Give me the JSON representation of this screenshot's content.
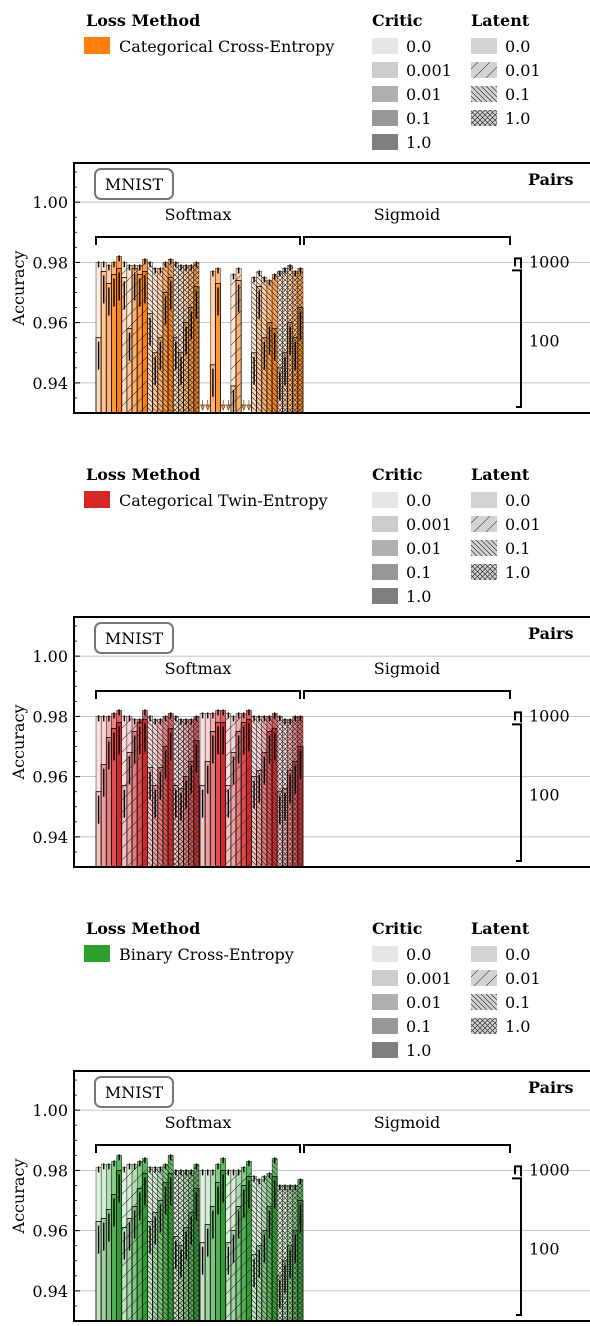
{
  "legend_titles": {
    "loss": "Loss Method",
    "critic": "Critic",
    "latent": "Latent"
  },
  "critic_values": [
    "0.0",
    "0.001",
    "0.01",
    "0.1",
    "1.0"
  ],
  "latent_values": [
    "0.0",
    "0.01",
    "0.1",
    "1.0"
  ],
  "colors": {
    "orange": "#ff7f0e",
    "red": "#d62728",
    "green": "#2ca02c",
    "critic_swatches": [
      "#e6e6e6",
      "#cccccc",
      "#b0b0b0",
      "#979797",
      "#7f7f7f"
    ]
  },
  "chart_data": [
    {
      "type": "bar",
      "loss_method": "Categorical Cross-Entropy",
      "dataset": "MNIST",
      "ylabel": "Accuracy",
      "ylim": [
        0.93,
        1.013
      ],
      "yticks": [
        "0.94",
        "0.96",
        "0.98",
        "1.00"
      ],
      "groups": [
        "Softmax",
        "Sigmoid"
      ],
      "pairs_label": "Pairs",
      "pairs_ticks": [
        "1000",
        "100"
      ],
      "grid": true,
      "softmax": {
        "high": [
          0.98,
          0.98,
          0.979,
          0.98,
          0.982,
          0.98,
          0.979,
          0.979,
          0.979,
          0.981,
          0.98,
          0.978,
          0.978,
          0.98,
          0.981,
          0.98,
          0.979,
          0.979,
          0.979,
          0.98
        ],
        "low": [
          0.955,
          0.977,
          0.973,
          0.976,
          0.978,
          0.975,
          0.958,
          0.978,
          0.976,
          0.977,
          0.963,
          0.95,
          0.955,
          0.97,
          0.975,
          0.955,
          0.95,
          0.96,
          0.965,
          0.972
        ]
      },
      "sigmoid": {
        "high": [
          null,
          null,
          0.977,
          0.978,
          null,
          null,
          0.976,
          0.978,
          null,
          null,
          0.975,
          0.977,
          0.975,
          0.974,
          0.976,
          0.977,
          0.978,
          0.979,
          0.977,
          0.978
        ],
        "low": [
          null,
          null,
          0.946,
          0.973,
          null,
          null,
          0.939,
          0.974,
          null,
          null,
          0.95,
          0.972,
          0.955,
          0.96,
          0.958,
          0.945,
          0.95,
          0.96,
          0.955,
          0.965
        ]
      }
    },
    {
      "type": "bar",
      "loss_method": "Categorical Twin-Entropy",
      "dataset": "MNIST",
      "ylabel": "Accuracy",
      "ylim": [
        0.93,
        1.013
      ],
      "yticks": [
        "0.94",
        "0.96",
        "0.98",
        "1.00"
      ],
      "groups": [
        "Softmax",
        "Sigmoid"
      ],
      "pairs_label": "Pairs",
      "pairs_ticks": [
        "1000",
        "100"
      ],
      "grid": true,
      "softmax": {
        "high": [
          0.98,
          0.98,
          0.98,
          0.981,
          0.982,
          0.98,
          0.98,
          0.979,
          0.979,
          0.982,
          0.98,
          0.979,
          0.979,
          0.98,
          0.981,
          0.98,
          0.979,
          0.979,
          0.979,
          0.98
        ],
        "low": [
          0.955,
          0.964,
          0.973,
          0.976,
          0.978,
          0.957,
          0.968,
          0.975,
          0.978,
          0.979,
          0.963,
          0.957,
          0.963,
          0.97,
          0.976,
          0.957,
          0.956,
          0.96,
          0.965,
          0.972
        ]
      },
      "sigmoid": {
        "high": [
          0.981,
          0.981,
          0.981,
          0.982,
          0.982,
          0.981,
          0.98,
          0.981,
          0.981,
          0.982,
          0.98,
          0.98,
          0.98,
          0.98,
          0.981,
          0.98,
          0.979,
          0.979,
          0.98,
          0.98
        ],
        "low": [
          0.957,
          0.965,
          0.975,
          0.978,
          0.978,
          0.957,
          0.968,
          0.975,
          0.978,
          0.979,
          0.96,
          0.962,
          0.968,
          0.975,
          0.976,
          0.955,
          0.956,
          0.962,
          0.965,
          0.97
        ]
      }
    },
    {
      "type": "bar",
      "loss_method": "Binary Cross-Entropy",
      "dataset": "MNIST",
      "ylabel": "Accuracy",
      "ylim": [
        0.93,
        1.013
      ],
      "yticks": [
        "0.94",
        "0.96",
        "0.98",
        "1.00"
      ],
      "groups": [
        "Softmax",
        "Sigmoid"
      ],
      "pairs_label": "Pairs",
      "pairs_ticks": [
        "1000",
        "100"
      ],
      "grid": true,
      "softmax": {
        "high": [
          0.981,
          0.982,
          0.982,
          0.983,
          0.985,
          0.981,
          0.982,
          0.982,
          0.983,
          0.984,
          0.981,
          0.981,
          0.981,
          0.982,
          0.985,
          0.98,
          0.98,
          0.98,
          0.98,
          0.982
        ],
        "low": [
          0.963,
          0.964,
          0.967,
          0.972,
          0.98,
          0.961,
          0.964,
          0.968,
          0.974,
          0.979,
          0.963,
          0.966,
          0.97,
          0.976,
          0.979,
          0.958,
          0.955,
          0.961,
          0.966,
          0.974
        ]
      },
      "sigmoid": {
        "high": [
          0.98,
          0.98,
          0.98,
          0.982,
          0.984,
          0.98,
          0.98,
          0.98,
          0.981,
          0.983,
          0.978,
          0.977,
          0.978,
          0.979,
          0.984,
          0.975,
          0.975,
          0.975,
          0.975,
          0.977
        ],
        "low": [
          0.956,
          0.962,
          0.968,
          0.976,
          0.98,
          0.956,
          0.96,
          0.968,
          0.975,
          0.978,
          0.952,
          0.955,
          0.96,
          0.968,
          0.978,
          0.945,
          0.95,
          0.955,
          0.96,
          0.97
        ]
      }
    }
  ]
}
